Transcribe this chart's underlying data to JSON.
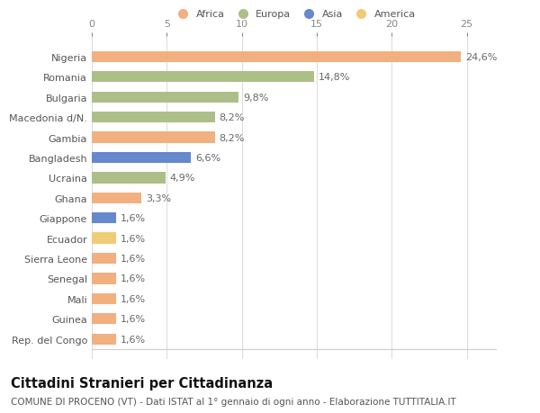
{
  "countries": [
    "Nigeria",
    "Romania",
    "Bulgaria",
    "Macedonia d/N.",
    "Gambia",
    "Bangladesh",
    "Ucraina",
    "Ghana",
    "Giappone",
    "Ecuador",
    "Sierra Leone",
    "Senegal",
    "Mali",
    "Guinea",
    "Rep. del Congo"
  ],
  "values": [
    24.6,
    14.8,
    9.8,
    8.2,
    8.2,
    6.6,
    4.9,
    3.3,
    1.6,
    1.6,
    1.6,
    1.6,
    1.6,
    1.6,
    1.6
  ],
  "labels": [
    "24,6%",
    "14,8%",
    "9,8%",
    "8,2%",
    "8,2%",
    "6,6%",
    "4,9%",
    "3,3%",
    "1,6%",
    "1,6%",
    "1,6%",
    "1,6%",
    "1,6%",
    "1,6%",
    "1,6%"
  ],
  "continents": [
    "Africa",
    "Europa",
    "Europa",
    "Europa",
    "Africa",
    "Asia",
    "Europa",
    "Africa",
    "Asia",
    "America",
    "Africa",
    "Africa",
    "Africa",
    "Africa",
    "Africa"
  ],
  "continent_colors": {
    "Africa": "#F2AF80",
    "Europa": "#ADBF88",
    "Asia": "#6688CC",
    "America": "#F0CC77"
  },
  "legend_order": [
    "Africa",
    "Europa",
    "Asia",
    "America"
  ],
  "title": "Cittadini Stranieri per Cittadinanza",
  "subtitle": "COMUNE DI PROCENO (VT) - Dati ISTAT al 1° gennaio di ogni anno - Elaborazione TUTTITALIA.IT",
  "xlim": [
    0,
    27
  ],
  "xticks": [
    0,
    5,
    10,
    15,
    20,
    25
  ],
  "bg_color": "#ffffff",
  "grid_color": "#dddddd",
  "bar_height": 0.55,
  "label_fontsize": 8.0,
  "tick_fontsize": 8.0,
  "title_fontsize": 10.5,
  "subtitle_fontsize": 7.5
}
